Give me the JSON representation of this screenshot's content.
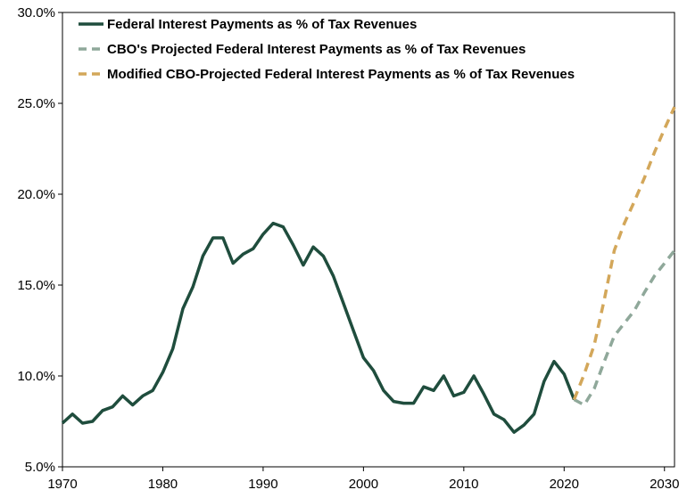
{
  "chart_data": {
    "type": "line",
    "xlim": [
      1970,
      2031
    ],
    "ylim": [
      5,
      30
    ],
    "y_ticks": [
      "5.0%",
      "10.0%",
      "15.0%",
      "20.0%",
      "25.0%",
      "30.0%"
    ],
    "x_ticks": [
      "1970",
      "1980",
      "1990",
      "2000",
      "2010",
      "2020",
      "2030"
    ],
    "grid": false,
    "legend_position": "top-left",
    "series": [
      {
        "name": "Federal Interest Payments as % of Tax Revenues",
        "color": "#1f4d3d",
        "style": "solid",
        "x": [
          1970,
          1971,
          1972,
          1973,
          1974,
          1975,
          1976,
          1977,
          1978,
          1979,
          1980,
          1981,
          1982,
          1983,
          1984,
          1985,
          1986,
          1987,
          1988,
          1989,
          1990,
          1991,
          1992,
          1993,
          1994,
          1995,
          1996,
          1997,
          1998,
          1999,
          2000,
          2001,
          2002,
          2003,
          2004,
          2005,
          2006,
          2007,
          2008,
          2009,
          2010,
          2011,
          2012,
          2013,
          2014,
          2015,
          2016,
          2017,
          2018,
          2019,
          2020,
          2021
        ],
        "y": [
          7.4,
          7.9,
          7.4,
          7.5,
          8.1,
          8.3,
          8.9,
          8.4,
          8.9,
          9.2,
          10.2,
          11.5,
          13.7,
          14.9,
          16.6,
          17.6,
          17.6,
          16.2,
          16.7,
          17.0,
          17.8,
          18.4,
          18.2,
          17.2,
          16.1,
          17.1,
          16.6,
          15.5,
          14.0,
          12.5,
          11.0,
          10.3,
          9.2,
          8.6,
          8.5,
          8.5,
          9.4,
          9.2,
          10.0,
          8.9,
          9.1,
          10.0,
          9.0,
          7.9,
          7.6,
          6.9,
          7.3,
          7.9,
          9.7,
          10.8,
          10.1,
          8.7
        ]
      },
      {
        "name": "CBO's Projected Federal Interest Payments as % of Tax Revenues",
        "color": "#8fa89a",
        "style": "dashed",
        "x": [
          2021,
          2022,
          2023,
          2024,
          2025,
          2026,
          2027,
          2028,
          2029,
          2030,
          2031
        ],
        "y": [
          8.7,
          8.4,
          9.3,
          10.8,
          12.2,
          12.9,
          13.6,
          14.6,
          15.5,
          16.2,
          16.9
        ]
      },
      {
        "name": "Modified CBO-Projected Federal Interest Payments as % of Tax Revenues",
        "color": "#d3a75a",
        "style": "dashed",
        "x": [
          2021,
          2022,
          2023,
          2024,
          2025,
          2026,
          2027,
          2028,
          2029,
          2030,
          2031
        ],
        "y": [
          8.7,
          10.1,
          11.7,
          14.2,
          16.9,
          18.4,
          19.6,
          20.9,
          22.3,
          23.6,
          24.8
        ]
      }
    ]
  }
}
